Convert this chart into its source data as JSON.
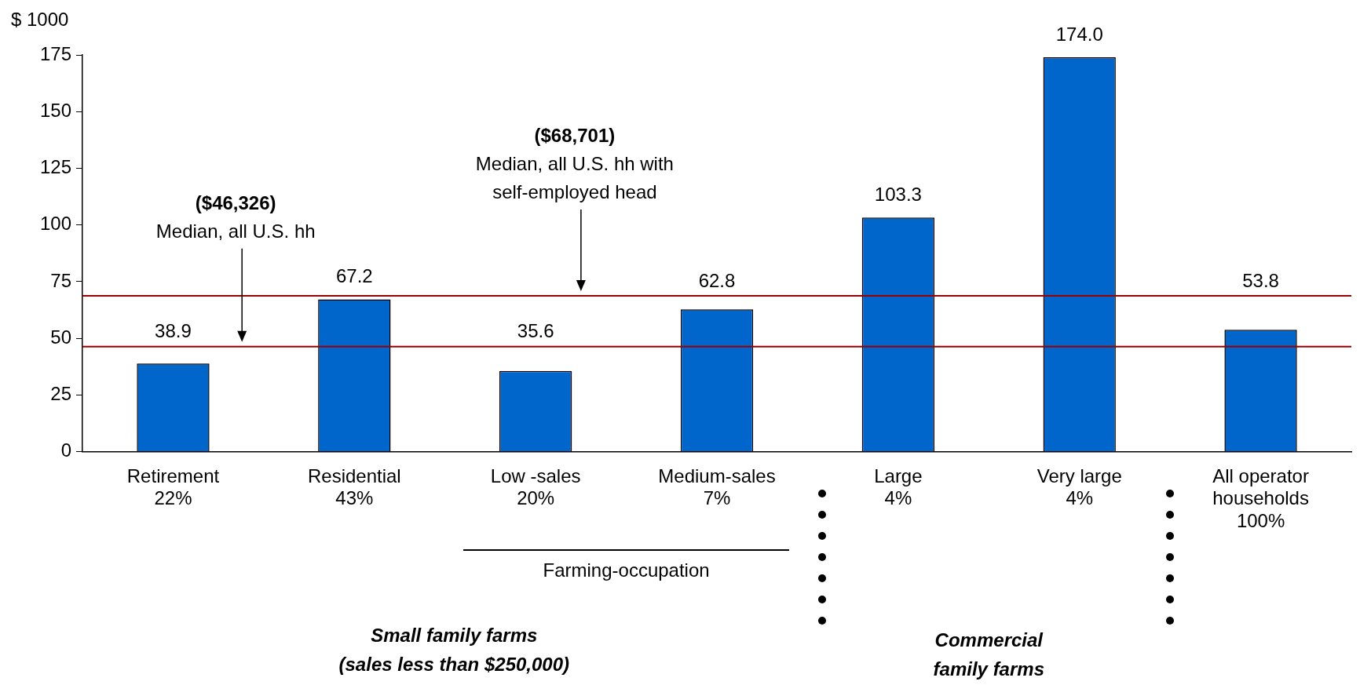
{
  "chart_data": {
    "type": "bar",
    "ylabel": "$ 1000",
    "categories": [
      "Retirement\n22%",
      "Residential\n43%",
      "Low -sales\n20%",
      "Medium-sales\n7%",
      "Large\n4%",
      "Very large\n4%",
      "All operator\nhouseholds\n100%"
    ],
    "values": [
      38.9,
      67.2,
      35.6,
      62.8,
      103.3,
      174.0,
      53.8
    ],
    "value_labels": [
      "38.9",
      "67.2",
      "35.6",
      "62.8",
      "103.3",
      "174.0",
      "53.8"
    ],
    "color": "#0066cc",
    "ylim": [
      0,
      175
    ],
    "yticks": [
      0,
      25,
      50,
      75,
      100,
      125,
      150,
      175
    ],
    "grid": false,
    "legend": false,
    "ref_lines": [
      {
        "axis": "y",
        "value": 46.326,
        "color": "#990000"
      },
      {
        "axis": "y",
        "value": 68.701,
        "color": "#990000"
      }
    ],
    "annotations": [
      "($46,326)\nMedian, all U.S. hh",
      "($68,701)\nMedian, all U.S. hh with\nself-employed head",
      "Farming-occupation",
      "Small family farms\n(sales less than $250,000)",
      "Commercial\nfamily farms"
    ]
  }
}
